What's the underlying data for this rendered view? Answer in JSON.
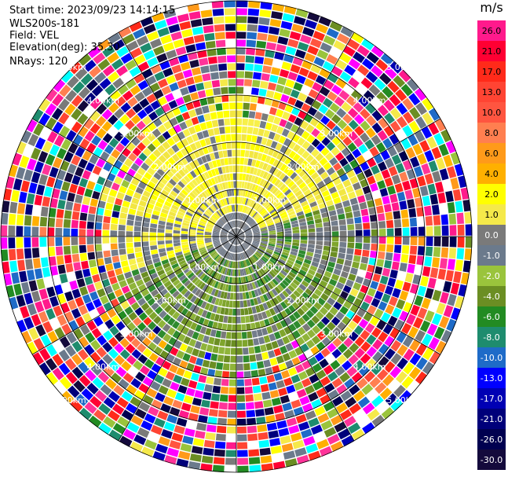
{
  "info": {
    "start_time": "Start time: 2023/09/23 14:14:15",
    "instrument": "WLS200s-181",
    "field": "Field: VEL",
    "elevation": "Elevation(deg): 35.30",
    "nrays": "NRays: 120"
  },
  "colorbar": {
    "unit": "m/s",
    "entries": [
      {
        "label": "26.0",
        "color": "#ff1a8c"
      },
      {
        "label": "21.0",
        "color": "#ff0033"
      },
      {
        "label": "17.0",
        "color": "#ff2a1a"
      },
      {
        "label": "13.0",
        "color": "#ff4433"
      },
      {
        "label": "10.0",
        "color": "#ff5540"
      },
      {
        "label": "8.0",
        "color": "#ff7f50"
      },
      {
        "label": "6.0",
        "color": "#ff9a1a"
      },
      {
        "label": "4.0",
        "color": "#ffb000"
      },
      {
        "label": "2.0",
        "color": "#ffff00"
      },
      {
        "label": "1.0",
        "color": "#f5e94a"
      },
      {
        "label": "0.0",
        "color": "#7a7a7a"
      },
      {
        "label": "-1.0",
        "color": "#6b7a8c"
      },
      {
        "label": "-2.0",
        "color": "#9ac43c"
      },
      {
        "label": "-4.0",
        "color": "#6b8e23"
      },
      {
        "label": "-6.0",
        "color": "#228b22"
      },
      {
        "label": "-8.0",
        "color": "#1e8c6e"
      },
      {
        "label": "-10.0",
        "color": "#1e6bc8"
      },
      {
        "label": "-13.0",
        "color": "#0000ff"
      },
      {
        "label": "-17.0",
        "color": "#0000b4"
      },
      {
        "label": "-21.0",
        "color": "#00007a"
      },
      {
        "label": "-26.0",
        "color": "#000050"
      },
      {
        "label": "-30.0",
        "color": "#140a3c"
      }
    ]
  },
  "range_labels": [
    "1.00km",
    "2.00km",
    "3.00km",
    "4.00km",
    "5.00km"
  ]
}
